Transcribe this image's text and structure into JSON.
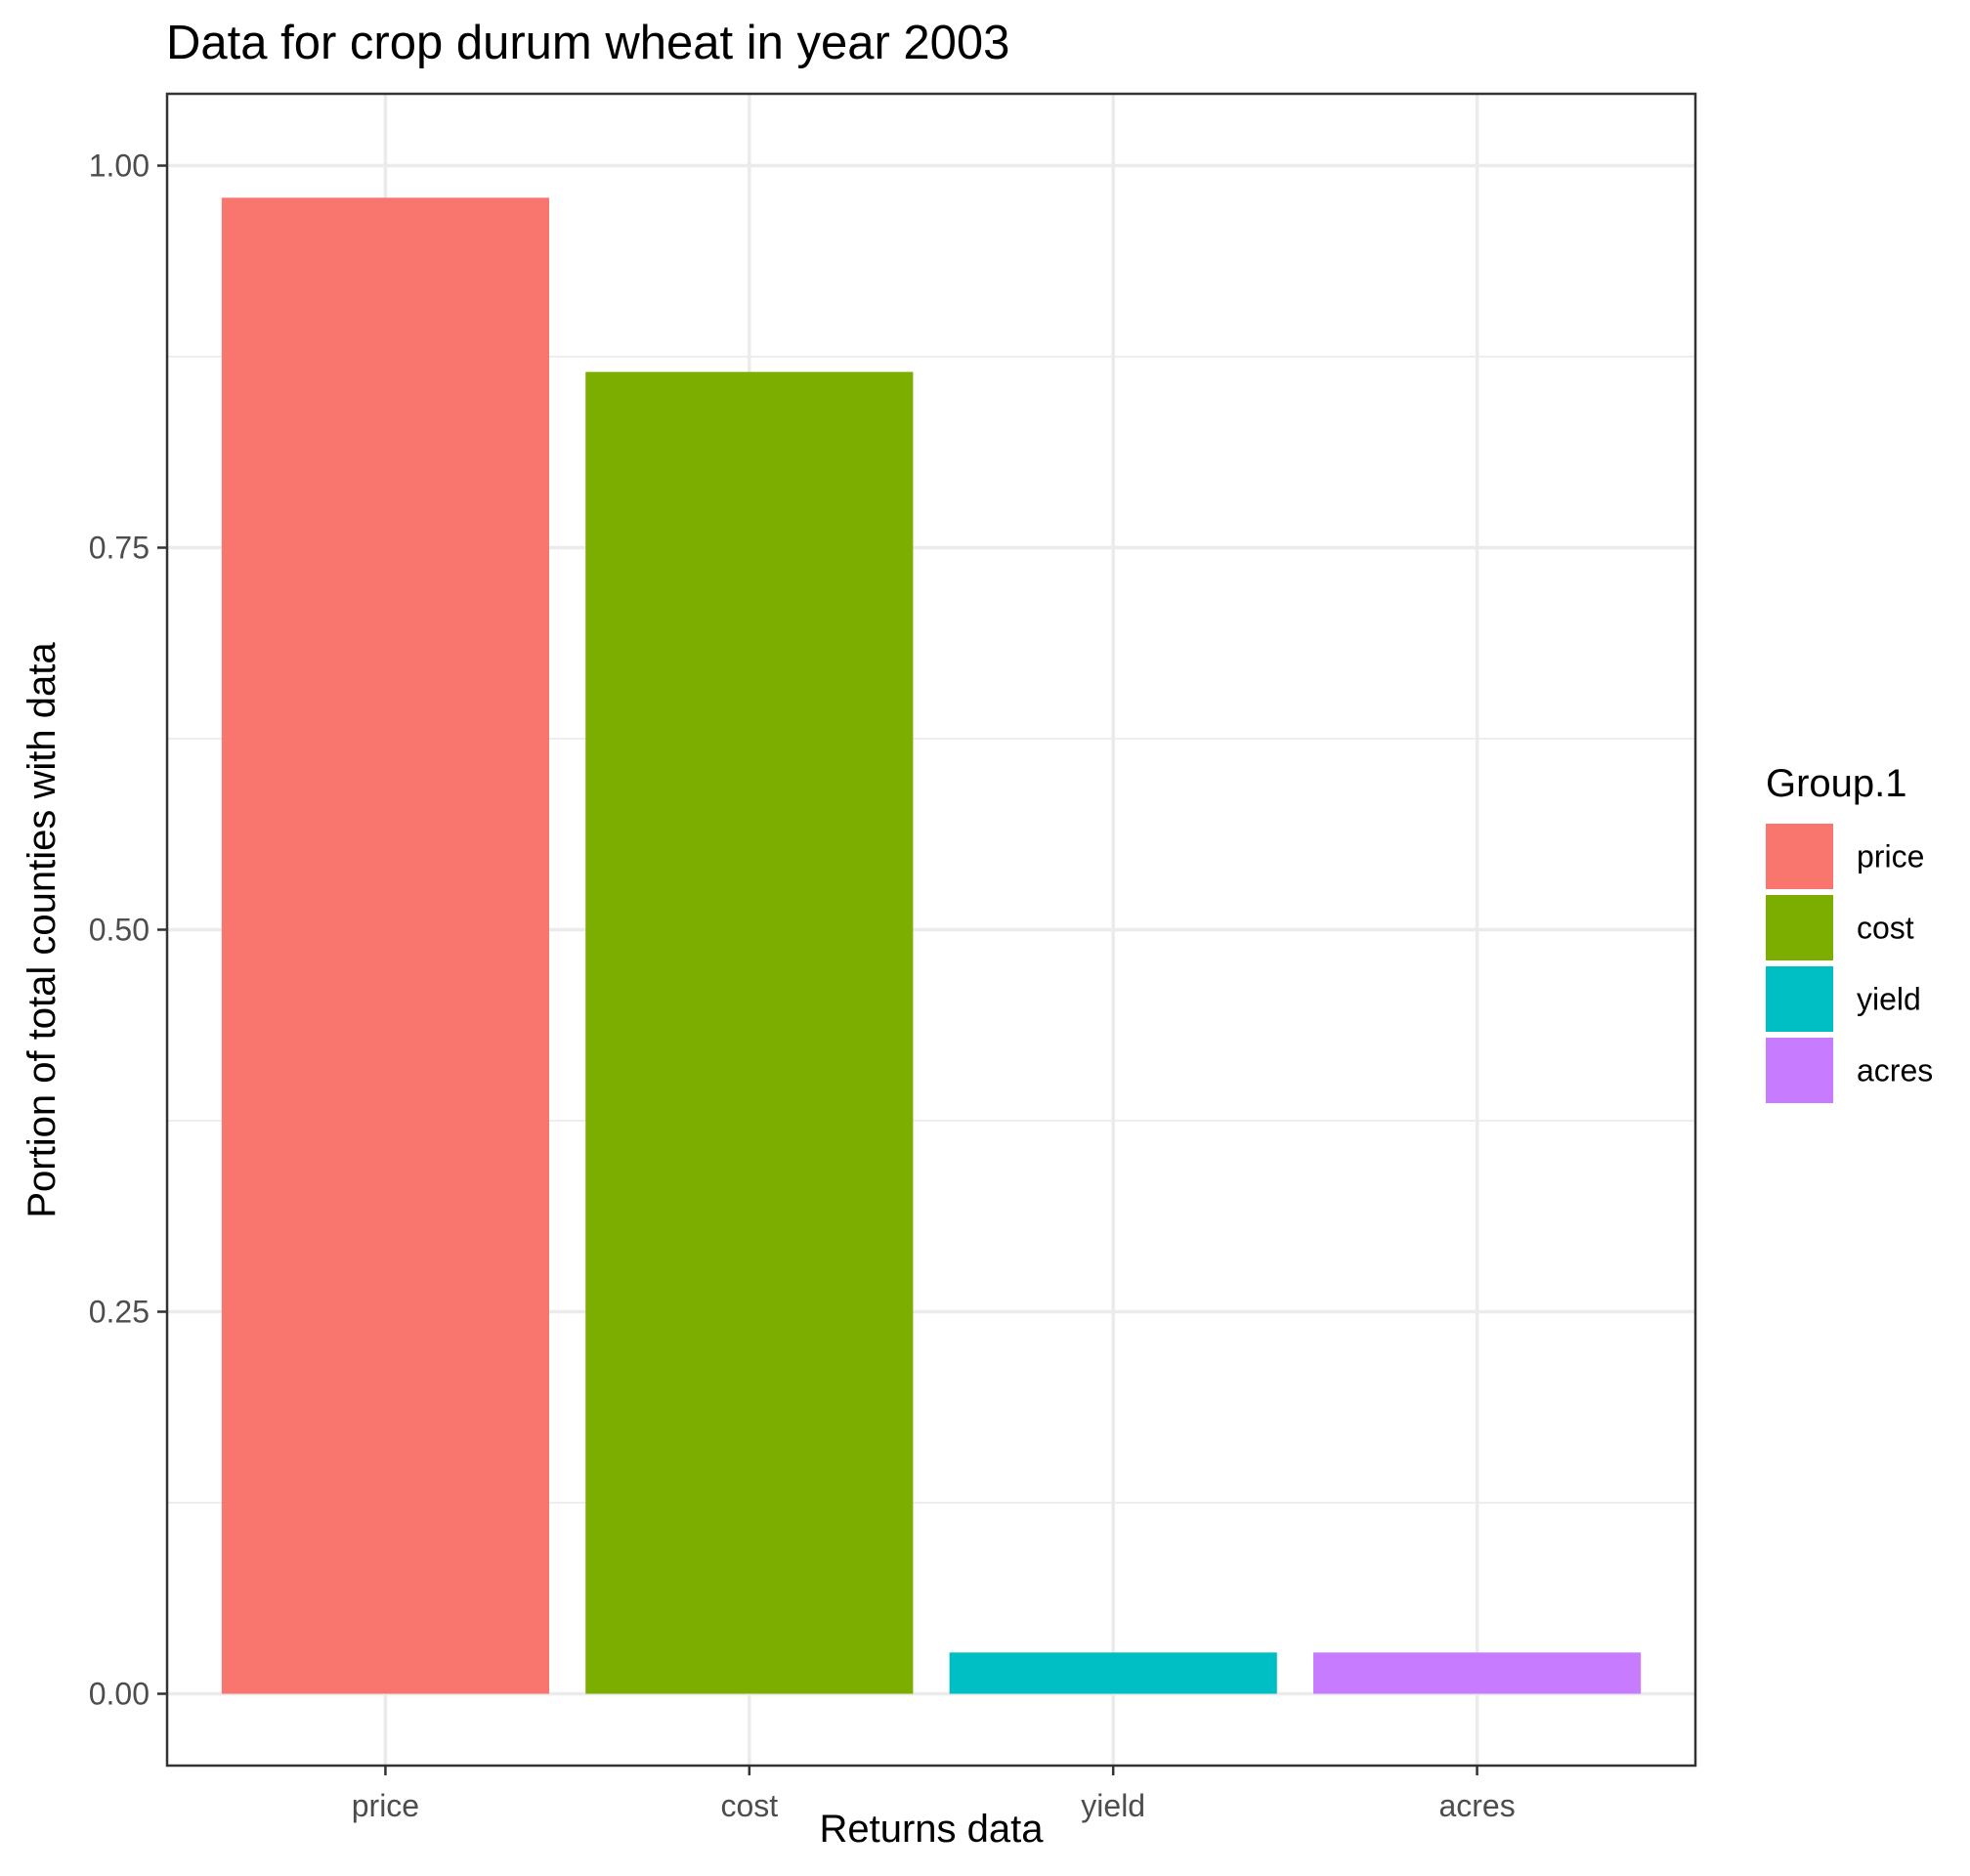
{
  "chart_data": {
    "type": "bar",
    "title": "Data for crop durum wheat in year 2003",
    "xlabel": "Returns data",
    "ylabel": "Portion of total counties with data",
    "categories": [
      "price",
      "cost",
      "yield",
      "acres"
    ],
    "values": [
      0.979,
      0.865,
      0.027,
      0.027
    ],
    "colors": [
      "#F8766D",
      "#7CAE00",
      "#00BFC4",
      "#C77CFF"
    ],
    "ylim": [
      -0.047,
      1.047
    ],
    "yticks": [
      0,
      0.25,
      0.5,
      0.75,
      1
    ],
    "ytick_labels": [
      "0.00",
      "0.25",
      "0.50",
      "0.75",
      "1.00"
    ],
    "grid": true,
    "legend": {
      "title": "Group.1",
      "placement": "right",
      "entries": [
        "price",
        "cost",
        "yield",
        "acres"
      ]
    }
  }
}
